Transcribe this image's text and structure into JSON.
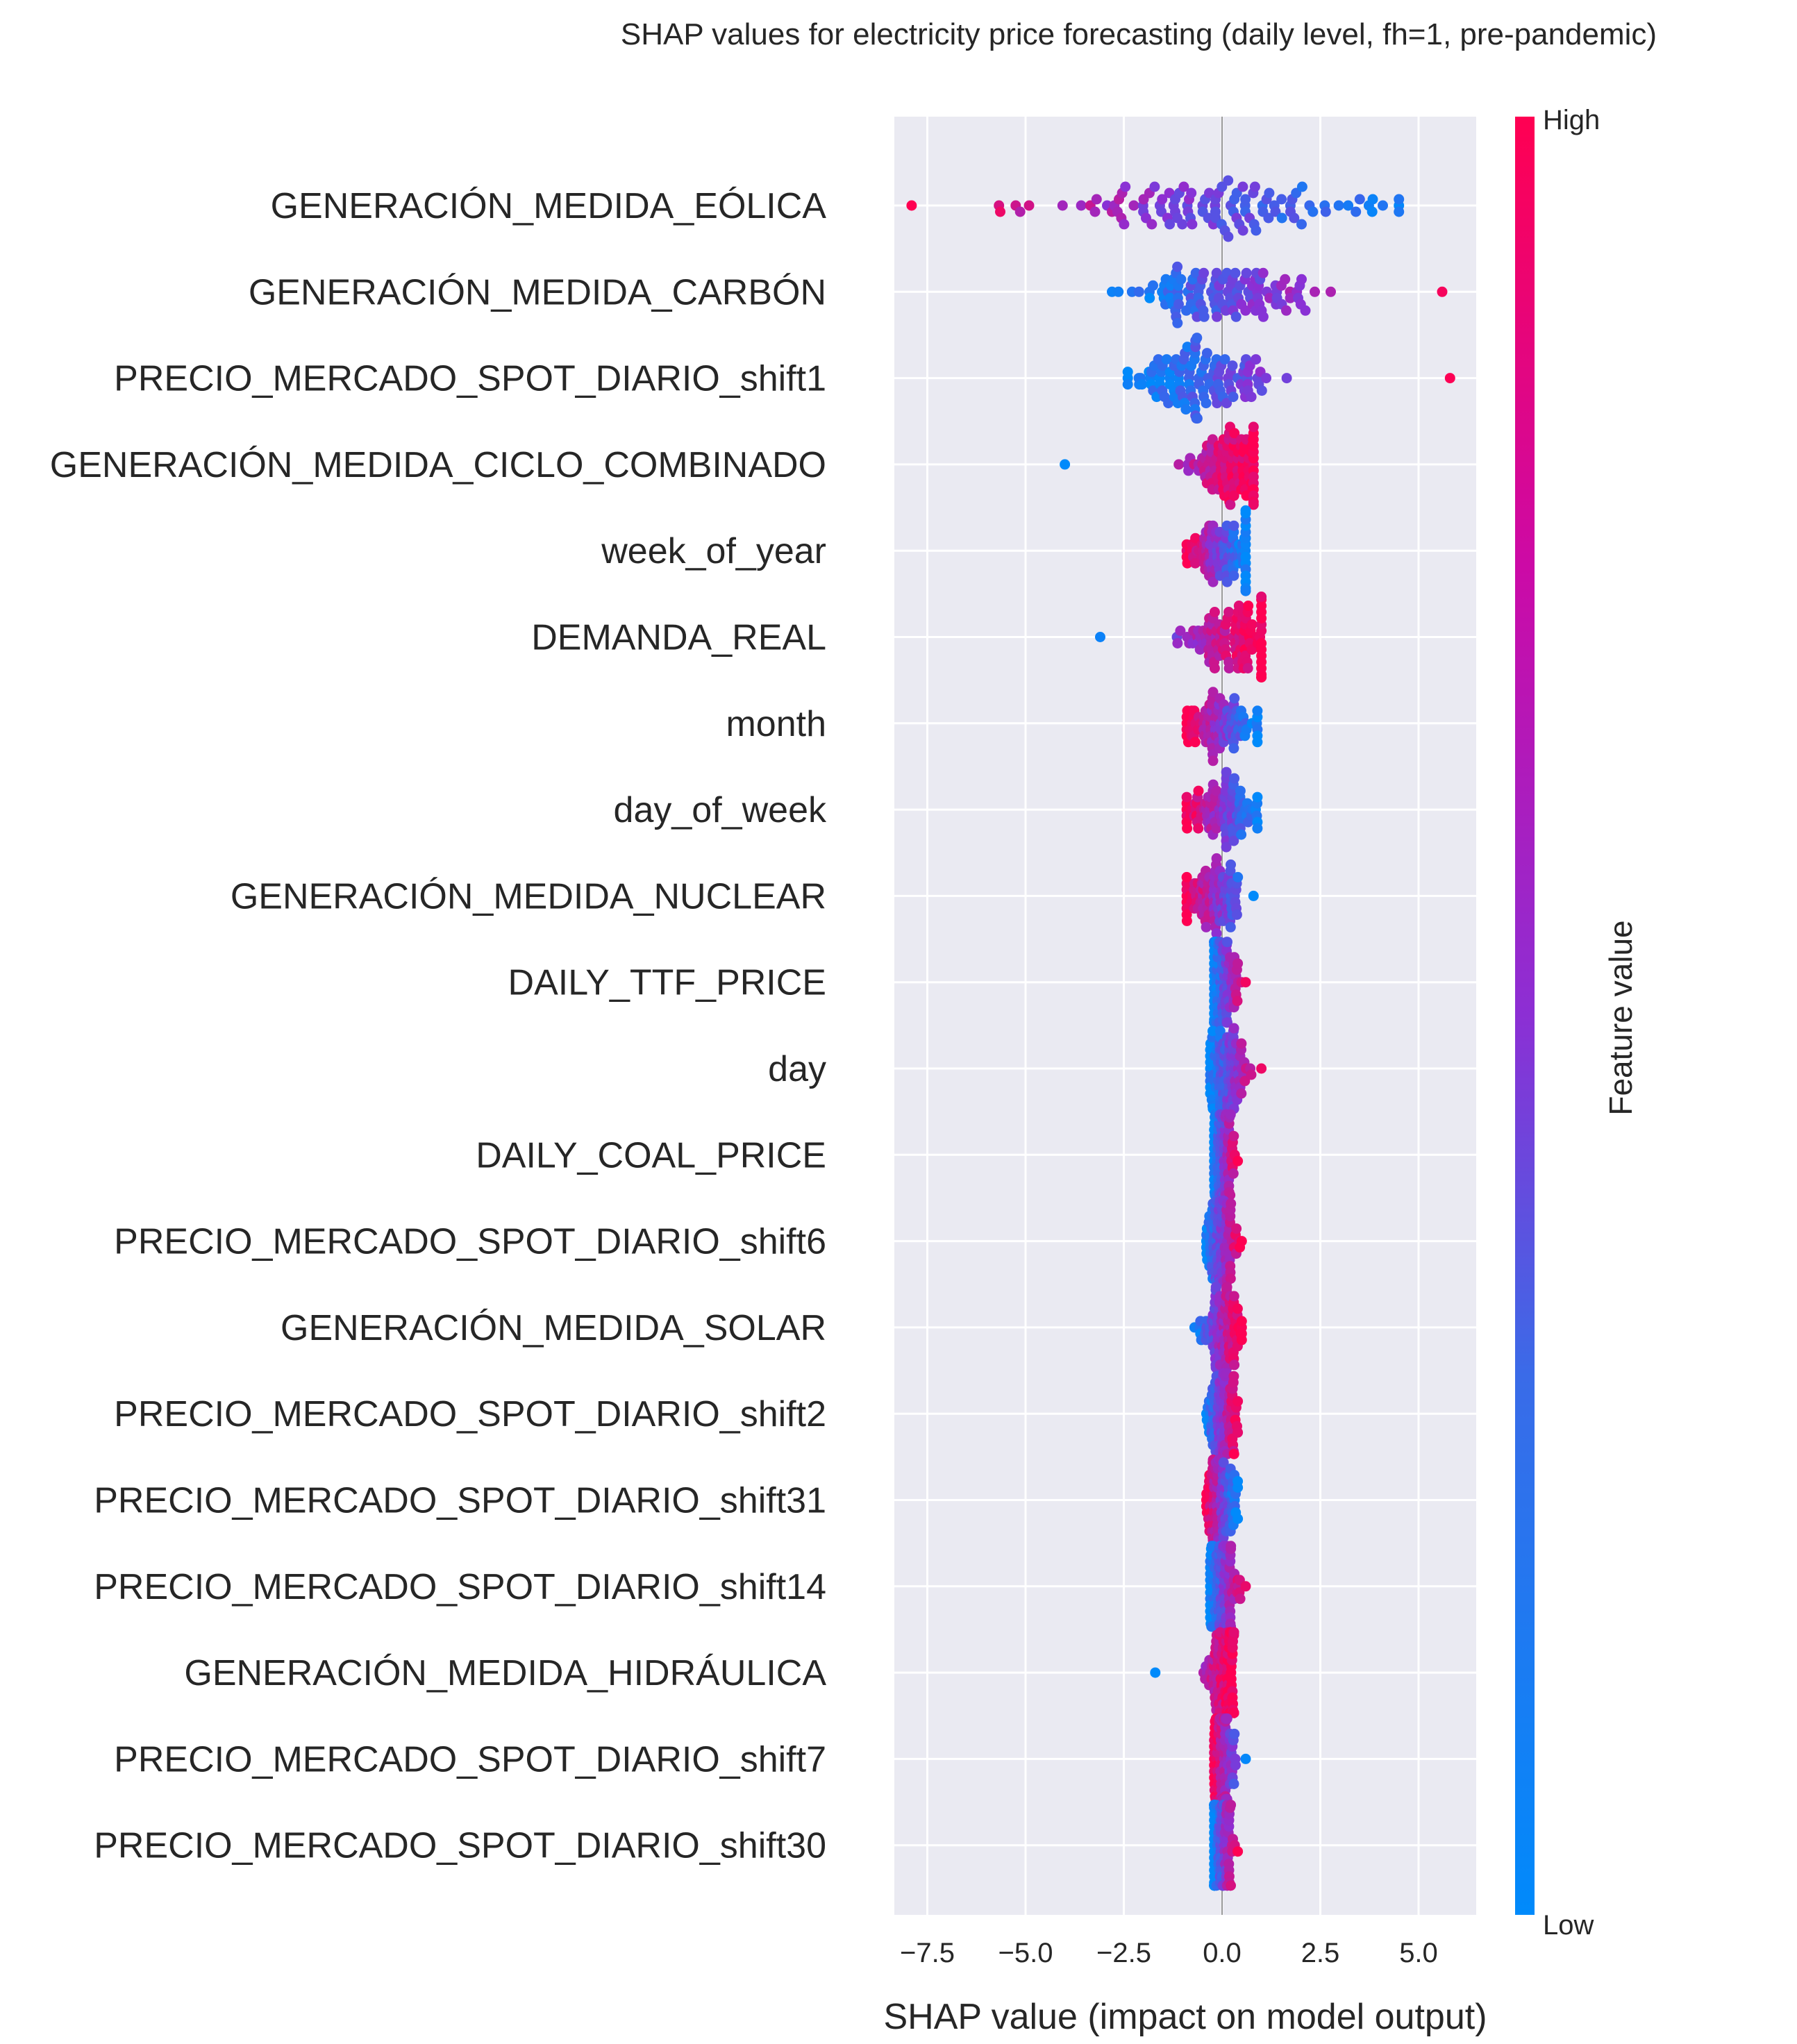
{
  "chart_data": {
    "type": "scatter",
    "subtype": "shap-beeswarm",
    "title": "SHAP values for electricity price forecasting (daily level, fh=1, pre-pandemic)",
    "xlabel": "SHAP value (impact on model output)",
    "xlim": [
      -8.3,
      6.5
    ],
    "xticks": [
      -7.5,
      -5.0,
      -2.5,
      0.0,
      2.5,
      5.0
    ],
    "xtick_labels": [
      "−7.5",
      "−5.0",
      "−2.5",
      "0.0",
      "2.5",
      "5.0"
    ],
    "grid": true,
    "colorbar": {
      "title": "Feature value",
      "high_label": "High",
      "low_label": "Low",
      "low_color": "#008afb",
      "high_color": "#ff0052",
      "mid_color": "#8c2fd4"
    },
    "features": [
      {
        "name": "GENERACIÓN_MEDIDA_EÓLICA",
        "min": -7.9,
        "max": 4.5,
        "center": -0.5,
        "spread": 2.5,
        "low_side": "right"
      },
      {
        "name": "GENERACIÓN_MEDIDA_CARBÓN",
        "min": -2.8,
        "max": 5.6,
        "center": 0.0,
        "spread": 1.2,
        "low_side": "left"
      },
      {
        "name": "PRECIO_MERCADO_SPOT_DIARIO_shift1",
        "min": -2.4,
        "max": 5.8,
        "center": -0.6,
        "spread": 0.9,
        "low_side": "left"
      },
      {
        "name": "GENERACIÓN_MEDIDA_CICLO_COMBINADO",
        "min": -4.0,
        "max": 0.8,
        "center": 0.2,
        "spread": 0.5,
        "low_side": "left"
      },
      {
        "name": "week_of_year",
        "min": -0.9,
        "max": 0.6,
        "center": 0.0,
        "spread": 0.5,
        "low_side": "right"
      },
      {
        "name": "DEMANDA_REAL",
        "min": -3.1,
        "max": 1.0,
        "center": 0.1,
        "spread": 0.6,
        "low_side": "left"
      },
      {
        "name": "month",
        "min": -0.9,
        "max": 0.9,
        "center": -0.1,
        "spread": 0.5,
        "low_side": "right"
      },
      {
        "name": "day_of_week",
        "min": -0.9,
        "max": 0.9,
        "center": 0.0,
        "spread": 0.5,
        "low_side": "right"
      },
      {
        "name": "GENERACIÓN_MEDIDA_NUCLEAR",
        "min": -0.9,
        "max": 0.8,
        "center": -0.2,
        "spread": 0.4,
        "low_side": "right"
      },
      {
        "name": "DAILY_TTF_PRICE",
        "min": -0.2,
        "max": 0.6,
        "center": 0.0,
        "spread": 0.2,
        "low_side": "left"
      },
      {
        "name": "day",
        "min": -0.3,
        "max": 1.0,
        "center": 0.1,
        "spread": 0.3,
        "low_side": "left"
      },
      {
        "name": "DAILY_COAL_PRICE",
        "min": -0.2,
        "max": 0.4,
        "center": 0.0,
        "spread": 0.15,
        "low_side": "left"
      },
      {
        "name": "PRECIO_MERCADO_SPOT_DIARIO_shift6",
        "min": -0.4,
        "max": 0.5,
        "center": 0.0,
        "spread": 0.2,
        "low_side": "left"
      },
      {
        "name": "GENERACIÓN_MEDIDA_SOLAR",
        "min": -0.7,
        "max": 0.5,
        "center": 0.0,
        "spread": 0.25,
        "low_side": "left"
      },
      {
        "name": "PRECIO_MERCADO_SPOT_DIARIO_shift2",
        "min": -0.4,
        "max": 0.4,
        "center": 0.0,
        "spread": 0.2,
        "low_side": "left"
      },
      {
        "name": "PRECIO_MERCADO_SPOT_DIARIO_shift31",
        "min": -0.4,
        "max": 0.4,
        "center": 0.0,
        "spread": 0.2,
        "low_side": "right"
      },
      {
        "name": "PRECIO_MERCADO_SPOT_DIARIO_shift14",
        "min": -0.3,
        "max": 0.6,
        "center": 0.0,
        "spread": 0.2,
        "low_side": "left"
      },
      {
        "name": "GENERACIÓN_MEDIDA_HIDRÁULICA",
        "min": -1.7,
        "max": 0.3,
        "center": 0.0,
        "spread": 0.2,
        "low_side": "left"
      },
      {
        "name": "PRECIO_MERCADO_SPOT_DIARIO_shift7",
        "min": -0.2,
        "max": 0.6,
        "center": 0.0,
        "spread": 0.15,
        "low_side": "right"
      },
      {
        "name": "PRECIO_MERCADO_SPOT_DIARIO_shift30",
        "min": -0.2,
        "max": 0.4,
        "center": 0.0,
        "spread": 0.15,
        "low_side": "left"
      }
    ]
  }
}
